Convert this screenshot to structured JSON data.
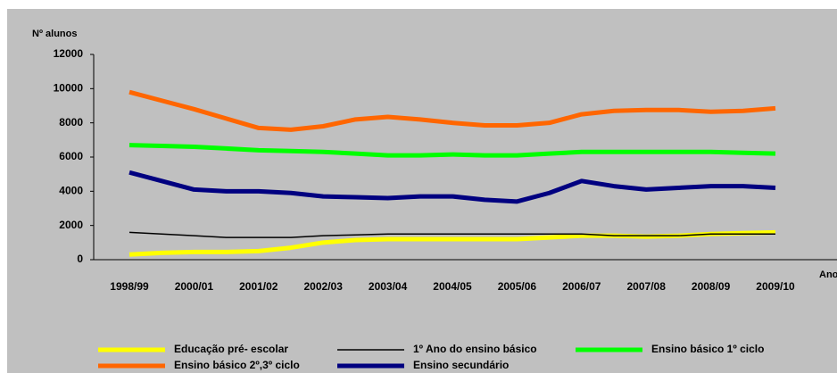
{
  "chart_data": {
    "type": "line",
    "y_label": "Nº alunos",
    "x_label": "Ano",
    "categories": [
      "1998/99",
      null,
      "2000/01",
      null,
      "2001/02",
      null,
      "2002/03",
      null,
      "2003/04",
      null,
      "2004/05",
      null,
      "2005/06",
      null,
      "2006/07",
      null,
      "2007/08",
      null,
      "2008/09",
      null,
      "2009/10"
    ],
    "series": [
      {
        "name": "Educação pré- escolar",
        "color": "#ffff00",
        "width": 5,
        "values": [
          300,
          400,
          450,
          450,
          500,
          700,
          1000,
          1150,
          1200,
          1200,
          1200,
          1200,
          1200,
          1300,
          1400,
          1400,
          1350,
          1400,
          1500,
          1550,
          1600
        ]
      },
      {
        "name": "1º Ano do ensino básico",
        "color": "#000000",
        "width": 1.5,
        "values": [
          1600,
          1500,
          1400,
          1300,
          1300,
          1300,
          1400,
          1450,
          1500,
          1500,
          1500,
          1500,
          1500,
          1500,
          1500,
          1400,
          1400,
          1400,
          1500,
          1500,
          1500
        ]
      },
      {
        "name": "Ensino básico 1º ciclo",
        "color": "#00ff00",
        "width": 5,
        "values": [
          6700,
          6650,
          6600,
          6500,
          6400,
          6350,
          6300,
          6200,
          6100,
          6100,
          6150,
          6100,
          6100,
          6200,
          6300,
          6300,
          6300,
          6300,
          6300,
          6250,
          6200
        ]
      },
      {
        "name": "Ensino básico 2º,3º ciclo",
        "color": "#ff6600",
        "width": 5,
        "values": [
          9800,
          9300,
          8800,
          8250,
          7700,
          7600,
          7800,
          8200,
          8350,
          8200,
          8000,
          7850,
          7850,
          8000,
          8500,
          8700,
          8750,
          8750,
          8650,
          8700,
          8850
        ]
      },
      {
        "name": "Ensino secundário",
        "color": "#000080",
        "width": 5,
        "values": [
          5100,
          4600,
          4100,
          4000,
          4000,
          3900,
          3700,
          3650,
          3600,
          3700,
          3700,
          3500,
          3400,
          3900,
          4600,
          4300,
          4100,
          4200,
          4300,
          4300,
          4200
        ]
      }
    ],
    "ylim": [
      0,
      12000
    ],
    "yticks": [
      0,
      2000,
      4000,
      6000,
      8000,
      10000,
      12000
    ],
    "grid": false
  }
}
